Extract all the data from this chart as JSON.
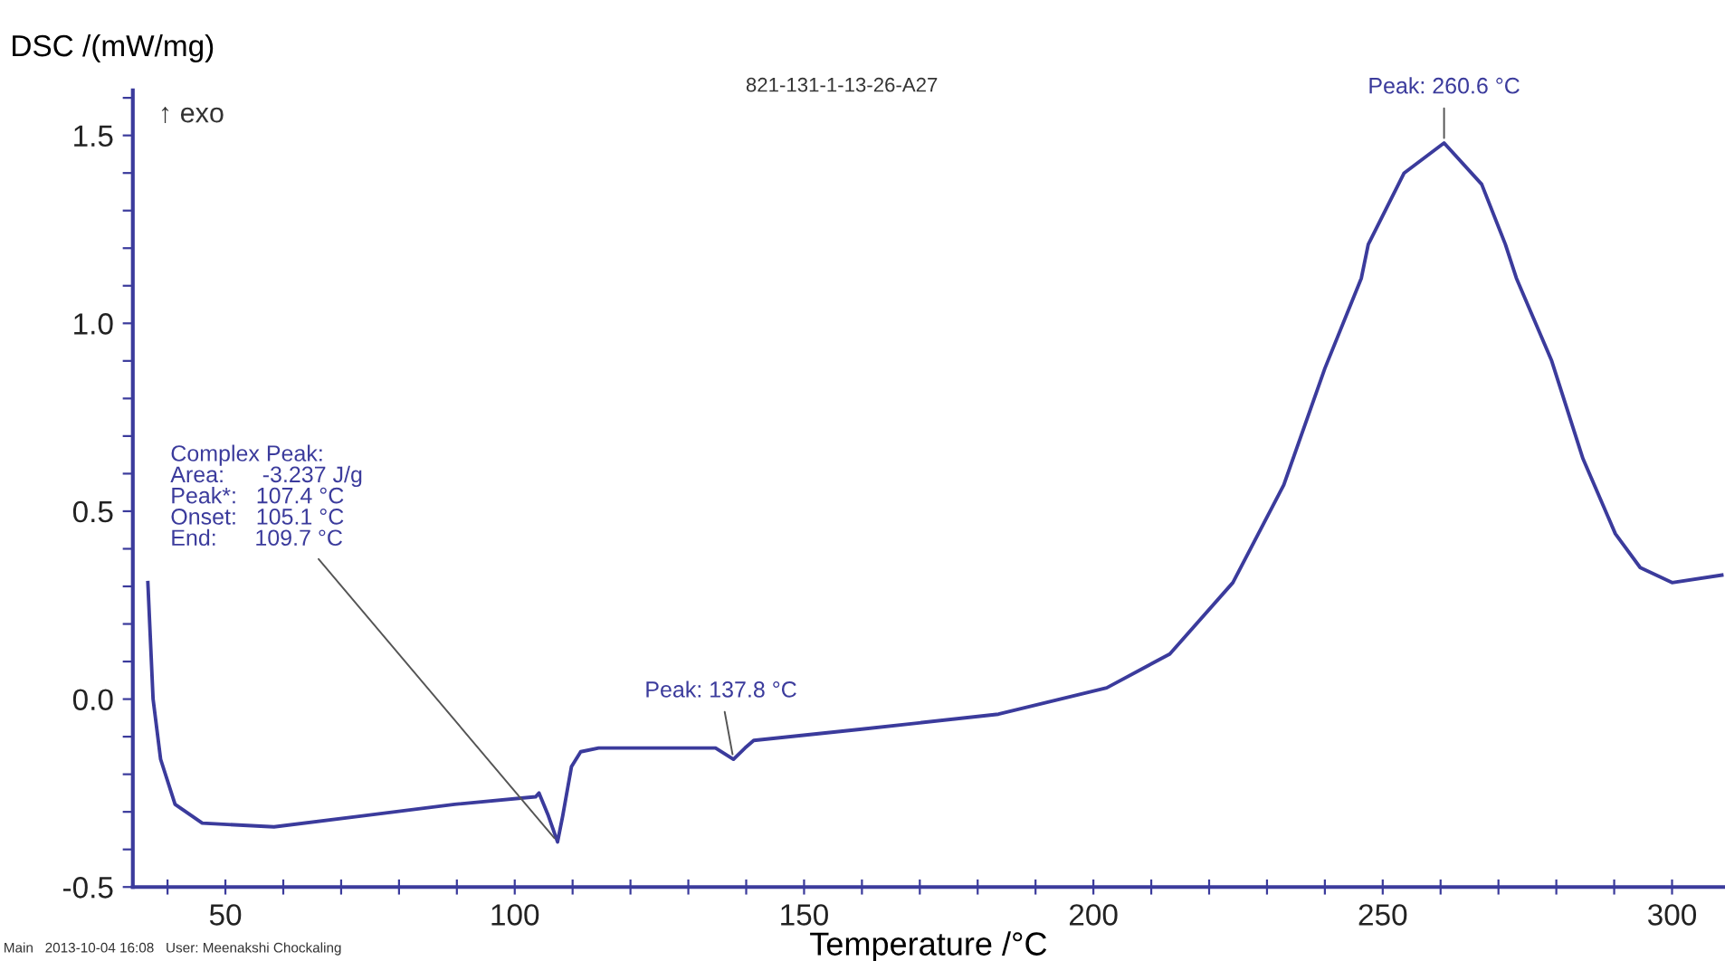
{
  "chart_data": {
    "type": "line",
    "title": "821-131-1-13-26-A27",
    "xlabel": "Temperature /°C",
    "ylabel": "DSC /(mW/mg)",
    "series": [
      {
        "color": "#3b3b9c",
        "x": [
          36.6,
          37.5,
          38.8,
          41.3,
          46,
          58.4,
          74,
          89.6,
          103.6,
          104.2,
          105.8,
          107.4,
          108.3,
          109.8,
          111.4,
          114.5,
          125,
          134.7,
          137.8,
          139.8,
          141.3,
          160,
          183.6,
          202.3,
          213.2,
          224.1,
          232.9,
          240.0,
          246.3,
          247.5,
          253.7,
          260.6,
          267.1,
          271.2,
          273.1,
          279.2,
          284.6,
          290.2,
          294.5,
          300,
          308.6
        ],
        "values": [
          0.31,
          0.0,
          -0.16,
          -0.28,
          -0.33,
          -0.34,
          -0.31,
          -0.28,
          -0.26,
          -0.25,
          -0.31,
          -0.38,
          -0.31,
          -0.18,
          -0.14,
          -0.13,
          -0.13,
          -0.13,
          -0.16,
          -0.13,
          -0.11,
          -0.08,
          -0.04,
          0.03,
          0.12,
          0.31,
          0.57,
          0.88,
          1.12,
          1.21,
          1.4,
          1.48,
          1.37,
          1.21,
          1.12,
          0.9,
          0.64,
          0.44,
          0.35,
          0.31,
          0.33
        ]
      }
    ],
    "xlim": [
      34,
      309
    ],
    "ylim": [
      -0.5,
      1.62
    ],
    "xticks": [
      {
        "value": 40,
        "label": null
      },
      50,
      {
        "value": 60,
        "label": null
      },
      {
        "value": 70,
        "label": null
      },
      {
        "value": 80,
        "label": null
      },
      {
        "value": 90,
        "label": null
      },
      100,
      {
        "value": 110,
        "label": null
      },
      {
        "value": 120,
        "label": null
      },
      {
        "value": 130,
        "label": null
      },
      {
        "value": 140,
        "label": null
      },
      150,
      {
        "value": 160,
        "label": null
      },
      {
        "value": 170,
        "label": null
      },
      {
        "value": 180,
        "label": null
      },
      {
        "value": 190,
        "label": null
      },
      200,
      {
        "value": 210,
        "label": null
      },
      {
        "value": 220,
        "label": null
      },
      {
        "value": 230,
        "label": null
      },
      {
        "value": 240,
        "label": null
      },
      250,
      {
        "value": 260,
        "label": null
      },
      {
        "value": 270,
        "label": null
      },
      {
        "value": 280,
        "label": null
      },
      {
        "value": 290,
        "label": null
      },
      300
    ],
    "yticks": [
      {
        "value": -0.5,
        "label": "-0.5"
      },
      {
        "value": -0.4,
        "label": null
      },
      {
        "value": -0.3,
        "label": null
      },
      {
        "value": -0.2,
        "label": null
      },
      {
        "value": -0.1,
        "label": null
      },
      {
        "value": 0,
        "label": "0.0"
      },
      {
        "value": 0.1,
        "label": null
      },
      {
        "value": 0.2,
        "label": null
      },
      {
        "value": 0.3,
        "label": null
      },
      {
        "value": 0.4,
        "label": null
      },
      {
        "value": 0.5,
        "label": "0.5"
      },
      {
        "value": 0.6,
        "label": null
      },
      {
        "value": 0.7,
        "label": null
      },
      {
        "value": 0.8,
        "label": null
      },
      {
        "value": 0.9,
        "label": null
      },
      {
        "value": 1.0,
        "label": "1.0"
      },
      {
        "value": 1.1,
        "label": null
      },
      {
        "value": 1.2,
        "label": null
      },
      {
        "value": 1.3,
        "label": null
      },
      {
        "value": 1.4,
        "label": null
      },
      {
        "value": 1.5,
        "label": "1.5"
      },
      {
        "value": 1.6,
        "label": null
      }
    ],
    "grid": false,
    "legend": false,
    "marker": "none",
    "line_style": "solid",
    "annotations": [
      {
        "text": "Complex Peak:\nArea:      -3.237 J/g\nPeak*:   107.4 °C\nOnset:   105.1 °C\nEnd:      109.7 °C",
        "x": 107.4,
        "y": -0.38
      },
      {
        "text": "Peak: 137.8 °C",
        "x": 137.8,
        "y": -0.16
      },
      {
        "text": "Peak: 260.6 °C",
        "x": 260.6,
        "y": 1.48
      },
      "↑ exo",
      "Main   2013-10-04 16:08   User: Meenakshi Chockaling"
    ]
  }
}
